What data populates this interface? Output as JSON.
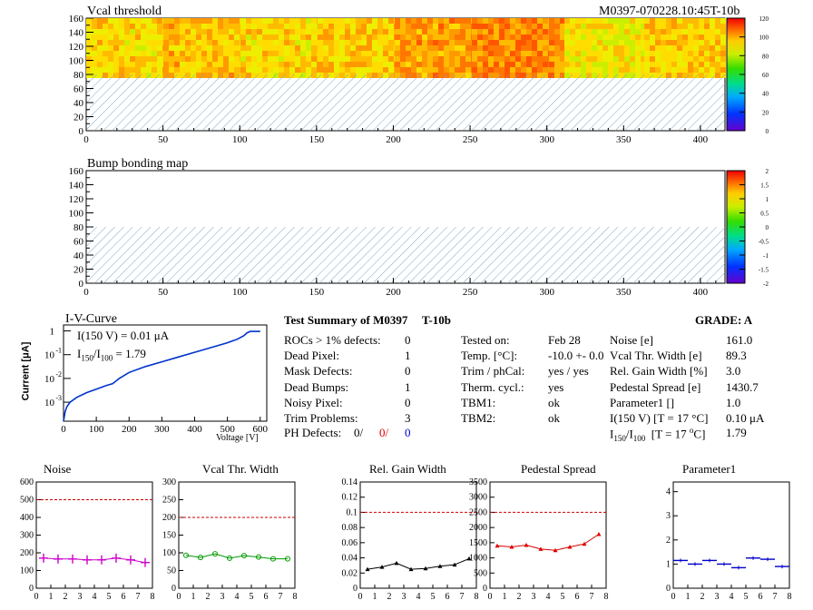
{
  "maps": {
    "vcal": {
      "title": "Vcal threshold",
      "module_id": "M0397-070228.10:45T-10b",
      "x_ticks": [
        0,
        50,
        100,
        150,
        200,
        250,
        300,
        350,
        400
      ],
      "y_ticks": [
        0,
        20,
        40,
        60,
        80,
        100,
        120,
        140,
        160
      ],
      "scale_ticks": [
        0,
        20,
        40,
        60,
        80,
        100,
        120
      ]
    },
    "bump": {
      "title": "Bump bonding map",
      "x_ticks": [
        0,
        50,
        100,
        150,
        200,
        250,
        300,
        350,
        400
      ],
      "y_ticks": [
        0,
        20,
        40,
        60,
        80,
        100,
        120,
        140,
        160
      ],
      "scale_ticks": [
        "-2",
        "-1.5",
        "-1",
        "-0.5",
        "0",
        "0.5",
        "1",
        "1.5",
        "2"
      ]
    }
  },
  "iv": {
    "title": "I-V-Curve",
    "xlabel": "Voltage [V]",
    "ylabel": "Current [μA]",
    "note_i150": "I(150 V) = 0.01 μA",
    "note_ratio_main": "I",
    "note_ratio_sub1": "150",
    "note_ratio_mid": "/I",
    "note_ratio_sub2": "100",
    "note_ratio_val": " =  1.79",
    "x_ticks": [
      "0",
      "100",
      "200",
      "300",
      "400",
      "500",
      "600"
    ],
    "y_ticks": [
      "10",
      "10",
      "10",
      "1"
    ],
    "y_exps": [
      "-3",
      "-2",
      "-1",
      ""
    ]
  },
  "summary": {
    "title": "Test Summary of M0397",
    "subtitle": "T-10b",
    "grade": "GRADE:  A",
    "left": [
      {
        "label": "ROCs > 1% defects:",
        "value": "0"
      },
      {
        "label": "Dead Pixel:",
        "value": "1"
      },
      {
        "label": "Mask Defects:",
        "value": "0"
      },
      {
        "label": "Dead Bumps:",
        "value": "1"
      },
      {
        "label": "Noisy Pixel:",
        "value": "0"
      },
      {
        "label": "Trim Problems:",
        "value": "3"
      }
    ],
    "ph_label": "PH Defects:",
    "ph_values": [
      "0/",
      "0/",
      "0"
    ],
    "middle": [
      {
        "label": "Tested on:",
        "value": "Feb 28"
      },
      {
        "label": "Temp. [°C]:",
        "value": "-10.0 +- 0.0"
      },
      {
        "label": "Trim / phCal:",
        "value": "yes / yes"
      },
      {
        "label": "Therm. cycl.:",
        "value": "yes"
      },
      {
        "label": "TBM1:",
        "value": "ok"
      },
      {
        "label": "TBM2:",
        "value": "ok"
      }
    ],
    "right": [
      {
        "label": "Noise [e]",
        "value": "161.0"
      },
      {
        "label": "Vcal Thr. Width [e]",
        "value": "89.3"
      },
      {
        "label": "Rel. Gain Width [%]",
        "value": "3.0"
      },
      {
        "label": "Pedestal Spread [e]",
        "value": "1430.7"
      },
      {
        "label": "Parameter1 []",
        "value": "1.0"
      },
      {
        "label": "I(150 V) [T = 17 °C]",
        "value": "0.10 μA"
      }
    ],
    "ratio_label": "I150/I100  [T = 17 °C]",
    "ratio_value": "1.79"
  },
  "chart_data": [
    {
      "type": "line",
      "title": "Noise",
      "color": "#cc00cc",
      "marker": "cross",
      "x": [
        0.5,
        1.5,
        2.5,
        3.5,
        4.5,
        5.5,
        6.5,
        7.5
      ],
      "values": [
        170,
        165,
        165,
        160,
        160,
        170,
        160,
        145
      ],
      "ylim": [
        0,
        600
      ],
      "threshold": 500,
      "y_ticks": [
        0,
        100,
        200,
        300,
        400,
        500,
        600
      ],
      "x_ticks": [
        0,
        1,
        2,
        3,
        4,
        5,
        6,
        7,
        8
      ]
    },
    {
      "type": "line",
      "title": "Vcal Thr. Width",
      "color": "#009900",
      "marker": "circle",
      "x": [
        0.5,
        1.5,
        2.5,
        3.5,
        4.5,
        5.5,
        6.5,
        7.5
      ],
      "values": [
        93,
        87,
        97,
        85,
        92,
        88,
        83,
        83
      ],
      "ylim": [
        0,
        300
      ],
      "threshold": 200,
      "y_ticks": [
        0,
        50,
        100,
        150,
        200,
        250,
        300
      ],
      "x_ticks": [
        0,
        1,
        2,
        3,
        4,
        5,
        6,
        7,
        8
      ]
    },
    {
      "type": "line",
      "title": "Rel. Gain Width",
      "color": "#000000",
      "marker": "triangle",
      "x": [
        0.5,
        1.5,
        2.5,
        3.5,
        4.5,
        5.5,
        6.5,
        7.5
      ],
      "values": [
        0.025,
        0.028,
        0.033,
        0.025,
        0.026,
        0.029,
        0.031,
        0.039
      ],
      "ylim": [
        0,
        0.14
      ],
      "threshold": 0.1,
      "y_ticks": [
        "0",
        "0.02",
        "0.04",
        "0.06",
        "0.08",
        "0.1",
        "0.12",
        "0.14"
      ],
      "x_ticks": [
        0,
        1,
        2,
        3,
        4,
        5,
        6,
        7,
        8
      ]
    },
    {
      "type": "line",
      "title": "Pedestal Spread",
      "color": "#dd0000",
      "marker": "triangle",
      "x": [
        0.5,
        1.5,
        2.5,
        3.5,
        4.5,
        5.5,
        6.5,
        7.5
      ],
      "values": [
        1400,
        1360,
        1420,
        1290,
        1250,
        1360,
        1460,
        1780
      ],
      "ylim": [
        0,
        3500
      ],
      "threshold": 2500,
      "y_ticks": [
        0,
        500,
        1000,
        1500,
        2000,
        2500,
        3000,
        3500
      ],
      "x_ticks": [
        0,
        1,
        2,
        3,
        4,
        5,
        6,
        7,
        8
      ]
    },
    {
      "type": "hist",
      "title": "Parameter1",
      "color": "#0000cc",
      "x": [
        0.5,
        1.5,
        2.5,
        3.5,
        4.5,
        5.5,
        6.5,
        7.5
      ],
      "values": [
        1.15,
        1.0,
        1.15,
        1.0,
        0.85,
        1.25,
        1.2,
        0.9
      ],
      "ylim": [
        0,
        4.4
      ],
      "y_ticks": [
        0,
        1,
        2,
        3,
        4
      ],
      "x_ticks": [
        0,
        1,
        2,
        3,
        4,
        5,
        6,
        7,
        8
      ]
    }
  ]
}
